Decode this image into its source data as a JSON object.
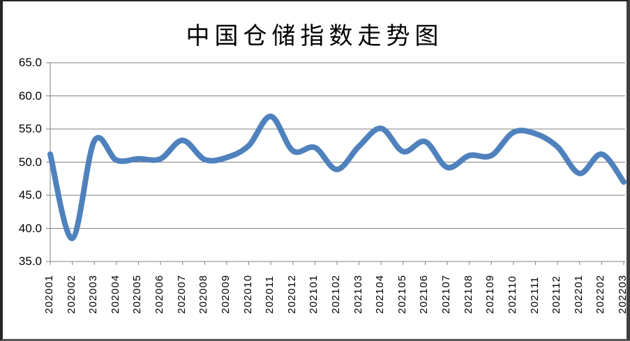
{
  "chart_data": {
    "type": "line",
    "title": "中国仓储指数走势图",
    "xlabel": "",
    "ylabel": "",
    "legend": "none",
    "grid": "horizontal",
    "smoothed": true,
    "ylim": [
      35.0,
      65.0
    ],
    "ytick_step": 5.0,
    "ytick_labels": [
      "65.0",
      "60.0",
      "55.0",
      "50.0",
      "45.0",
      "40.0",
      "35.0"
    ],
    "categories": [
      "202001",
      "202002",
      "202003",
      "202004",
      "202005",
      "202006",
      "202007",
      "202008",
      "202009",
      "202010",
      "202011",
      "202012",
      "202101",
      "202102",
      "202103",
      "202104",
      "202105",
      "202106",
      "202107",
      "202108",
      "202109",
      "202110",
      "202111",
      "202112",
      "202201",
      "202202",
      "202203"
    ],
    "series": [
      {
        "name": "中国仓储指数",
        "values": [
          51.2,
          38.5,
          53.2,
          50.3,
          50.5,
          50.5,
          53.3,
          50.4,
          50.7,
          52.5,
          56.9,
          51.7,
          52.2,
          48.9,
          52.4,
          55.1,
          51.6,
          53.1,
          49.2,
          51.0,
          51.0,
          54.5,
          54.3,
          52.3,
          48.3,
          51.2,
          47.0
        ]
      }
    ],
    "colors": {
      "line": "#4F81BD",
      "grid": "#808080",
      "axis": "#808080",
      "text": "#000000",
      "background": "#FFFFFF"
    },
    "line_width": 8
  }
}
